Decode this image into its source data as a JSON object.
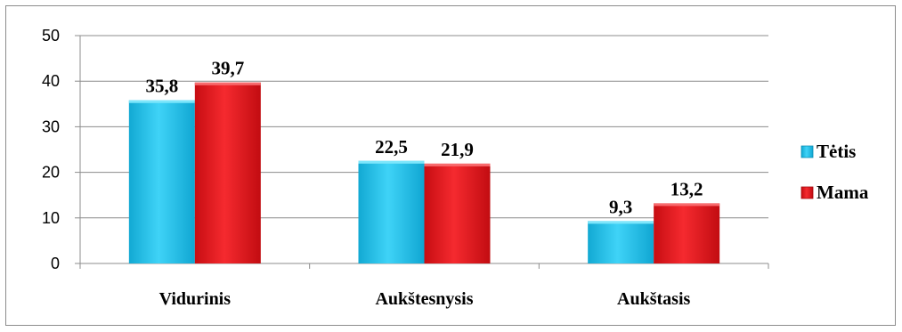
{
  "chart_data": {
    "type": "bar",
    "categories": [
      "Vidurinis",
      "Aukštesnysis",
      "Aukštasis"
    ],
    "series": [
      {
        "name": "Tėtis",
        "values": [
          35.8,
          22.5,
          9.3
        ],
        "labels": [
          "35,8",
          "22,5",
          "9,3"
        ],
        "color": "#1ec3ef"
      },
      {
        "name": "Mama",
        "values": [
          39.7,
          21.9,
          13.2
        ],
        "labels": [
          "39,7",
          "21,9",
          "13,2"
        ],
        "color": "#e8151b"
      }
    ],
    "yticks": [
      "0",
      "10",
      "20",
      "30",
      "40",
      "50"
    ],
    "ylim": [
      0,
      50
    ],
    "grid": true,
    "legend": "right"
  }
}
